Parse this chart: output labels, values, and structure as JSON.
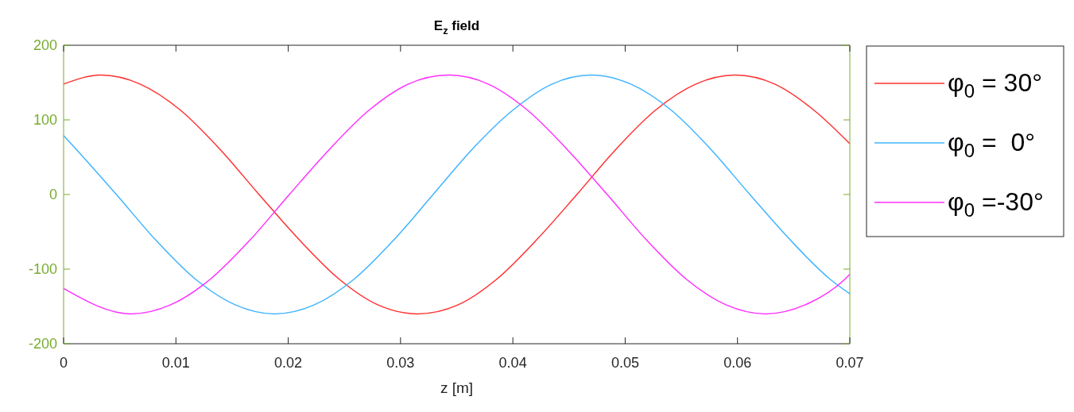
{
  "chart_data": {
    "type": "line",
    "title": "E$_{z}$ field",
    "xlabel": "z [m]",
    "xlim": [
      0,
      0.07
    ],
    "xticks": [
      0,
      0.01,
      0.02,
      0.03,
      0.04,
      0.05,
      0.06,
      0.07
    ],
    "ylim": [
      -200,
      200
    ],
    "yticks": [
      -200,
      -100,
      0,
      100,
      200
    ],
    "grid": false,
    "legend": "right",
    "marker": "none",
    "line_style": "solid",
    "series": [
      {
        "name": "φ$_{0}$ = 30°",
        "color": "#ff3030",
        "x": [
          0,
          0.0033,
          0.0068,
          0.0104,
          0.0139,
          0.0174,
          0.021,
          0.0245,
          0.028,
          0.0315,
          0.0351,
          0.0386,
          0.0421,
          0.0457,
          0.0492,
          0.0527,
          0.0563,
          0.0598,
          0.0633,
          0.0668,
          0.07
        ],
        "values": [
          148,
          160,
          148,
          113,
          61,
          0,
          -61,
          -113,
          -148,
          -160,
          -148,
          -113,
          -61,
          0,
          61,
          113,
          148,
          160,
          148,
          113,
          68
        ]
      },
      {
        "name": "φ$_{0}$ =  0°",
        "color": "#3fb4ff",
        "x": [
          0,
          0.0011,
          0.0047,
          0.0082,
          0.0117,
          0.0153,
          0.0188,
          0.0223,
          0.0259,
          0.0294,
          0.0329,
          0.0364,
          0.04,
          0.0435,
          0.047,
          0.0505,
          0.0541,
          0.0576,
          0.0611,
          0.0647,
          0.0682,
          0.07
        ],
        "values": [
          79,
          61,
          0,
          -61,
          -113,
          -148,
          -160,
          -148,
          -113,
          -61,
          0,
          61,
          113,
          148,
          160,
          148,
          113,
          61,
          0,
          -61,
          -113,
          -133
        ]
      },
      {
        "name": "φ$_{0}$ =-30°",
        "color": "#ff30ff",
        "x": [
          0,
          0.006,
          0.0095,
          0.0131,
          0.0166,
          0.0201,
          0.0237,
          0.0272,
          0.0307,
          0.0343,
          0.0378,
          0.0413,
          0.0448,
          0.0484,
          0.0519,
          0.0554,
          0.059,
          0.0625,
          0.066,
          0.0696,
          0.07
        ],
        "values": [
          -126,
          -160,
          -148,
          -113,
          -61,
          0,
          61,
          113,
          148,
          160,
          148,
          113,
          61,
          0,
          -61,
          -113,
          -148,
          -160,
          -148,
          -113,
          -107
        ]
      }
    ]
  }
}
